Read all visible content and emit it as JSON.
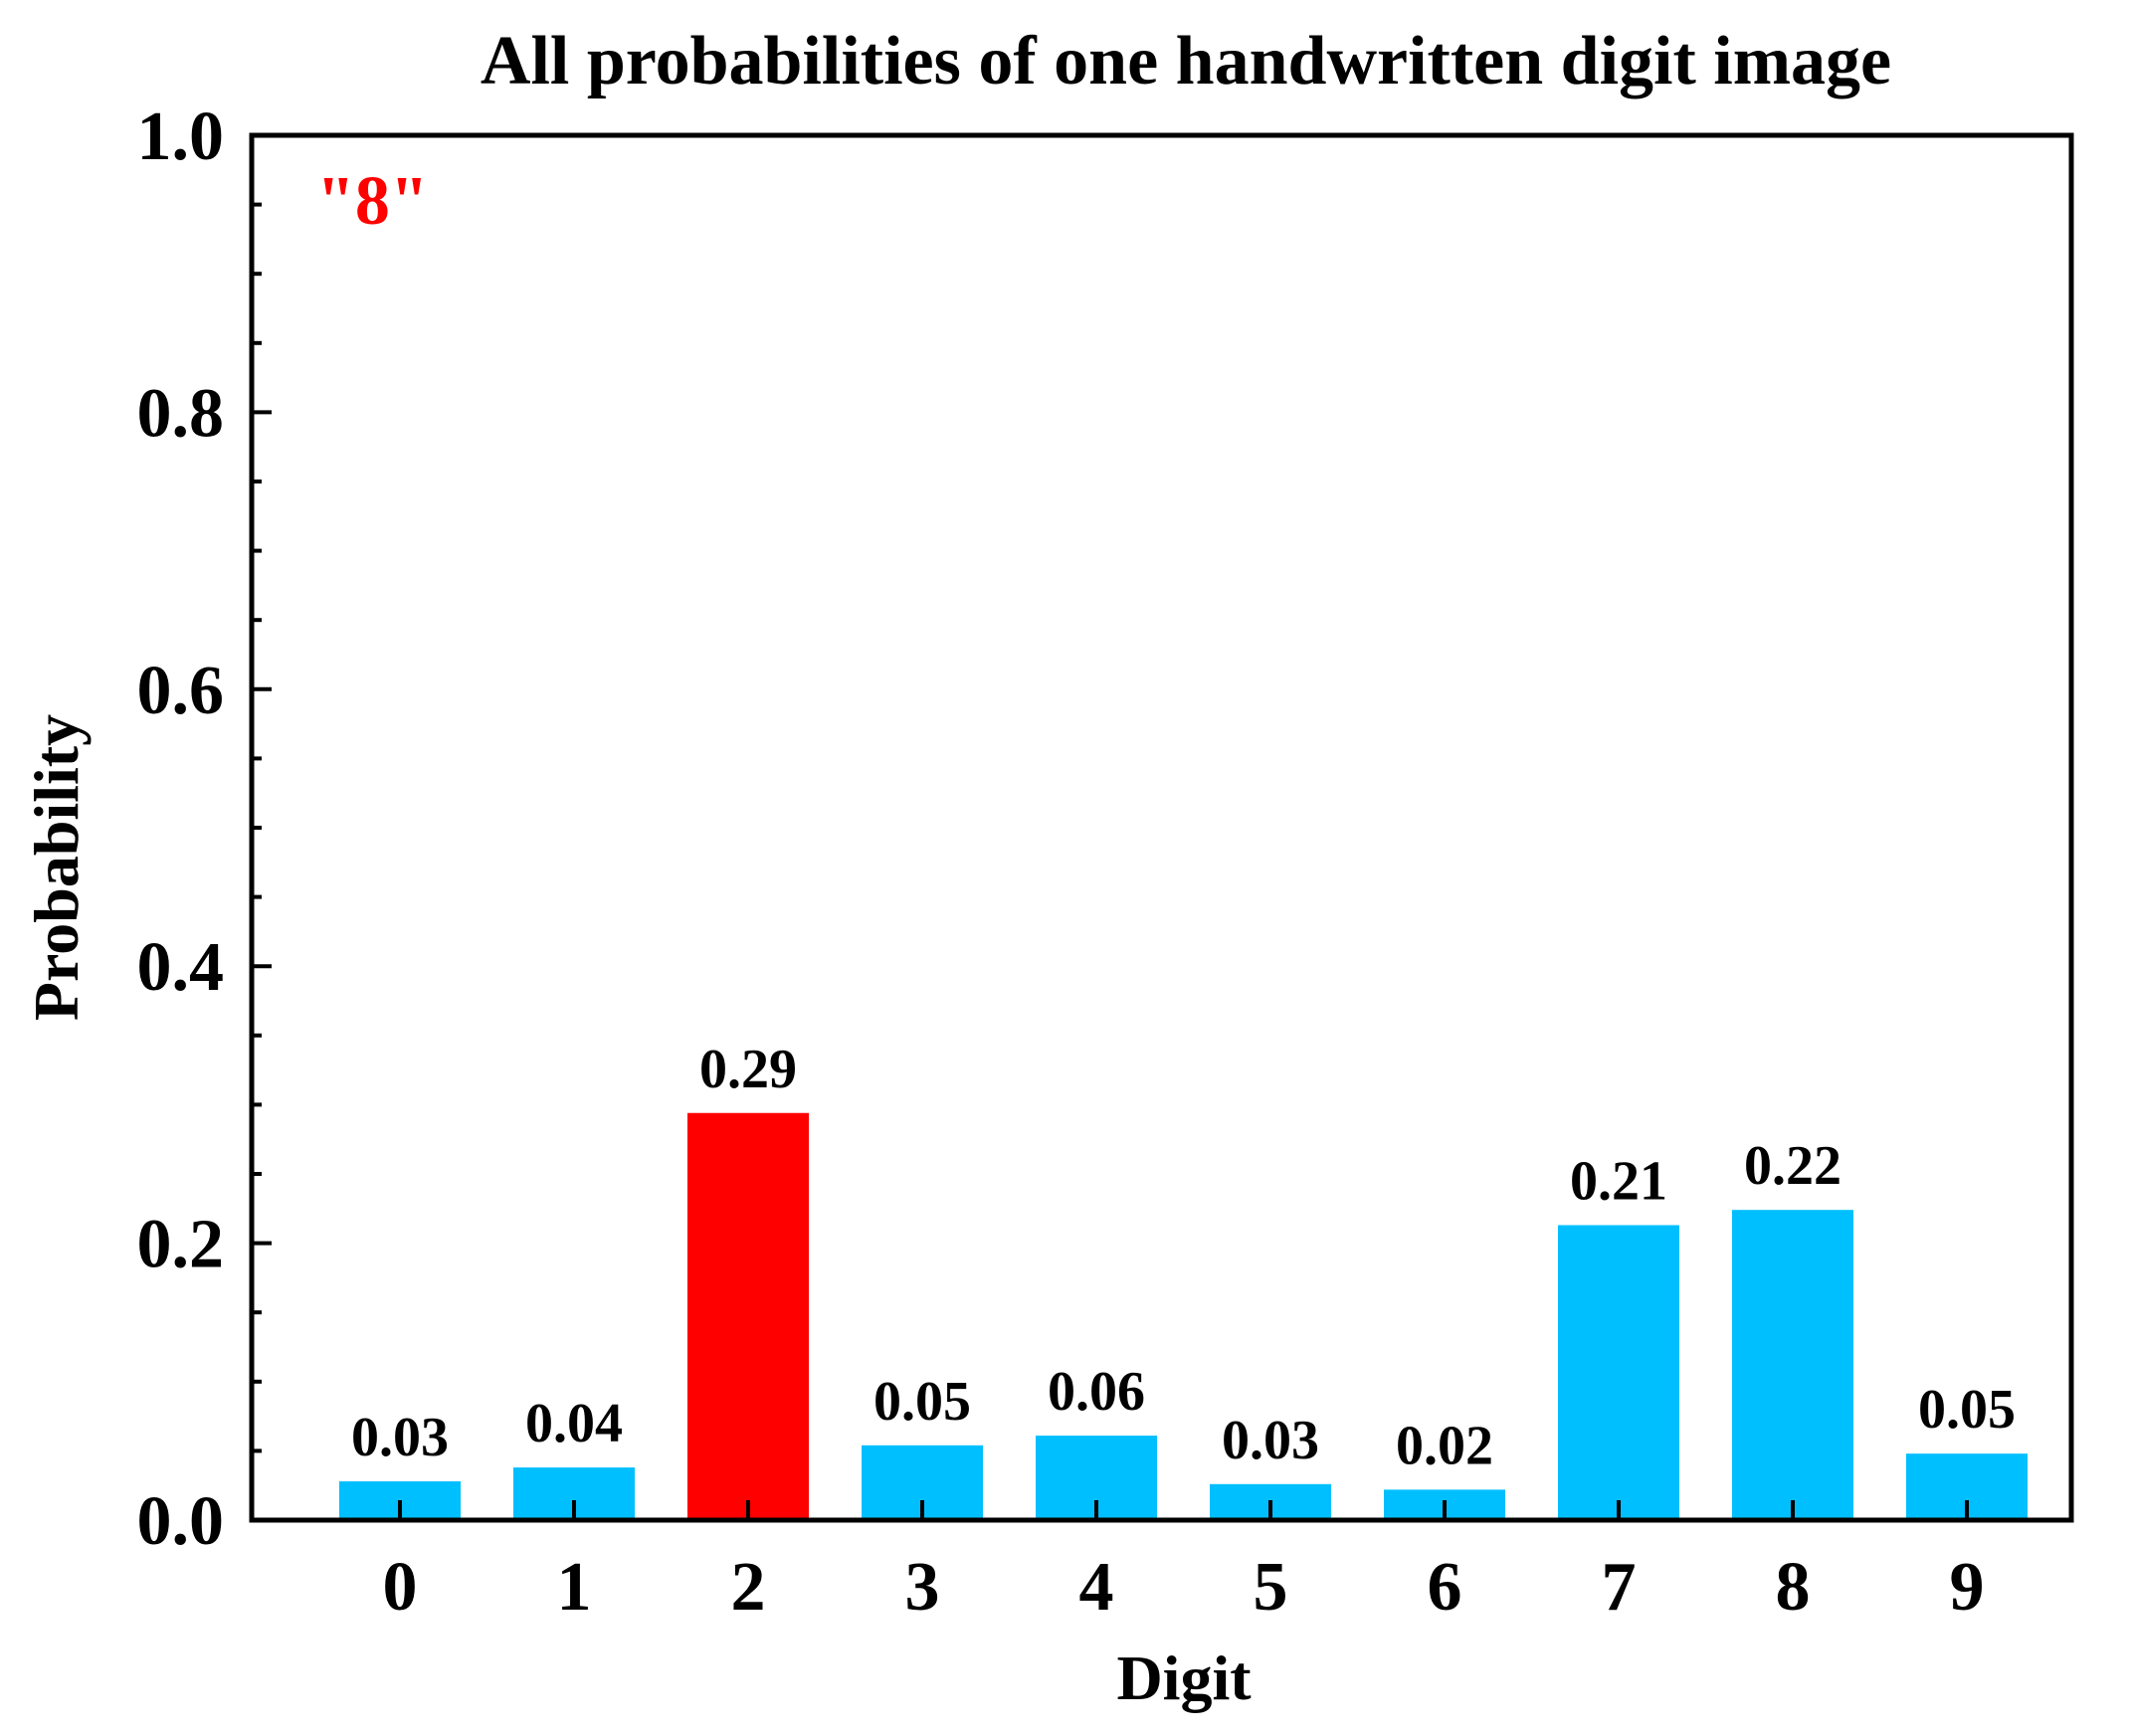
{
  "chart_data": {
    "type": "bar",
    "title": "All probabilities of one handwritten digit image",
    "xlabel": "Digit",
    "ylabel": "Probability",
    "categories": [
      "0",
      "1",
      "2",
      "3",
      "4",
      "5",
      "6",
      "7",
      "8",
      "9"
    ],
    "values": [
      0.028,
      0.038,
      0.294,
      0.054,
      0.061,
      0.026,
      0.022,
      0.213,
      0.224,
      0.048
    ],
    "data_labels": [
      "0.03",
      "0.04",
      "0.29",
      "0.05",
      "0.06",
      "0.03",
      "0.02",
      "0.21",
      "0.22",
      "0.05"
    ],
    "ylim": [
      0,
      1.0
    ],
    "yticks": [
      "0.0",
      "0.2",
      "0.4",
      "0.6",
      "0.8",
      "1.0"
    ],
    "highlight_index": 2,
    "colors": {
      "bar": "#00BFFF",
      "highlight": "#FF0000",
      "annotation": "#FF0000"
    },
    "annotation": "\"8\"",
    "annotation_position": "top-left",
    "grid": false
  }
}
